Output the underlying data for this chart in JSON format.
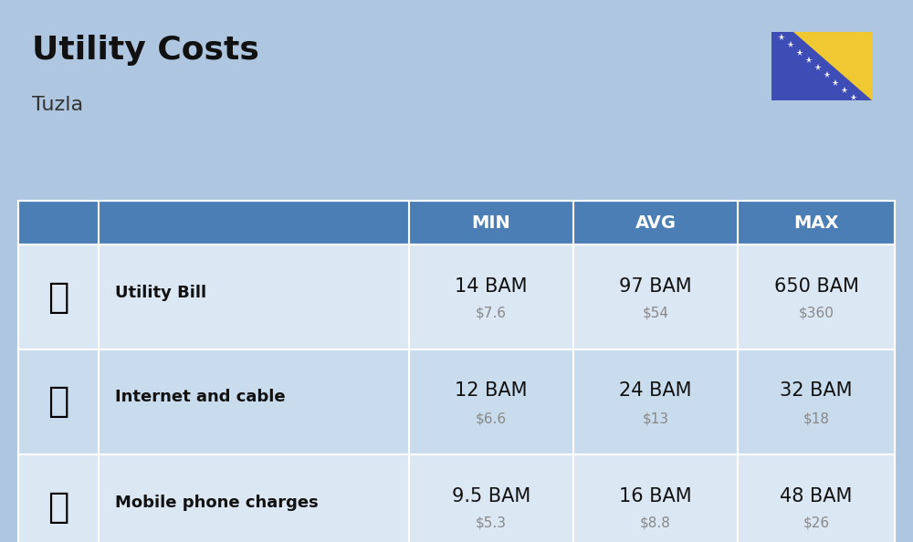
{
  "title": "Utility Costs",
  "subtitle": "Tuzla",
  "background_color": "#aec6e0",
  "header_color": "#4a7eb5",
  "header_text_color": "#ffffff",
  "row_color_1": "#dbe8f4",
  "row_color_2": "#c9dced",
  "cell_text_color": "#111111",
  "usd_text_color": "#888888",
  "rows": [
    {
      "label": "Utility Bill",
      "min_bam": "14 BAM",
      "min_usd": "$7.6",
      "avg_bam": "97 BAM",
      "avg_usd": "$54",
      "max_bam": "650 BAM",
      "max_usd": "$360"
    },
    {
      "label": "Internet and cable",
      "min_bam": "12 BAM",
      "min_usd": "$6.6",
      "avg_bam": "24 BAM",
      "avg_usd": "$13",
      "max_bam": "32 BAM",
      "max_usd": "$18"
    },
    {
      "label": "Mobile phone charges",
      "min_bam": "9.5 BAM",
      "min_usd": "$5.3",
      "avg_bam": "16 BAM",
      "avg_usd": "$8.8",
      "max_bam": "48 BAM",
      "max_usd": "$26"
    }
  ],
  "flag_blue": "#3d4db5",
  "flag_yellow": "#f0c832",
  "title_fontsize": 26,
  "subtitle_fontsize": 16,
  "header_fontsize": 14,
  "label_fontsize": 13,
  "value_fontsize": 15,
  "usd_fontsize": 11
}
